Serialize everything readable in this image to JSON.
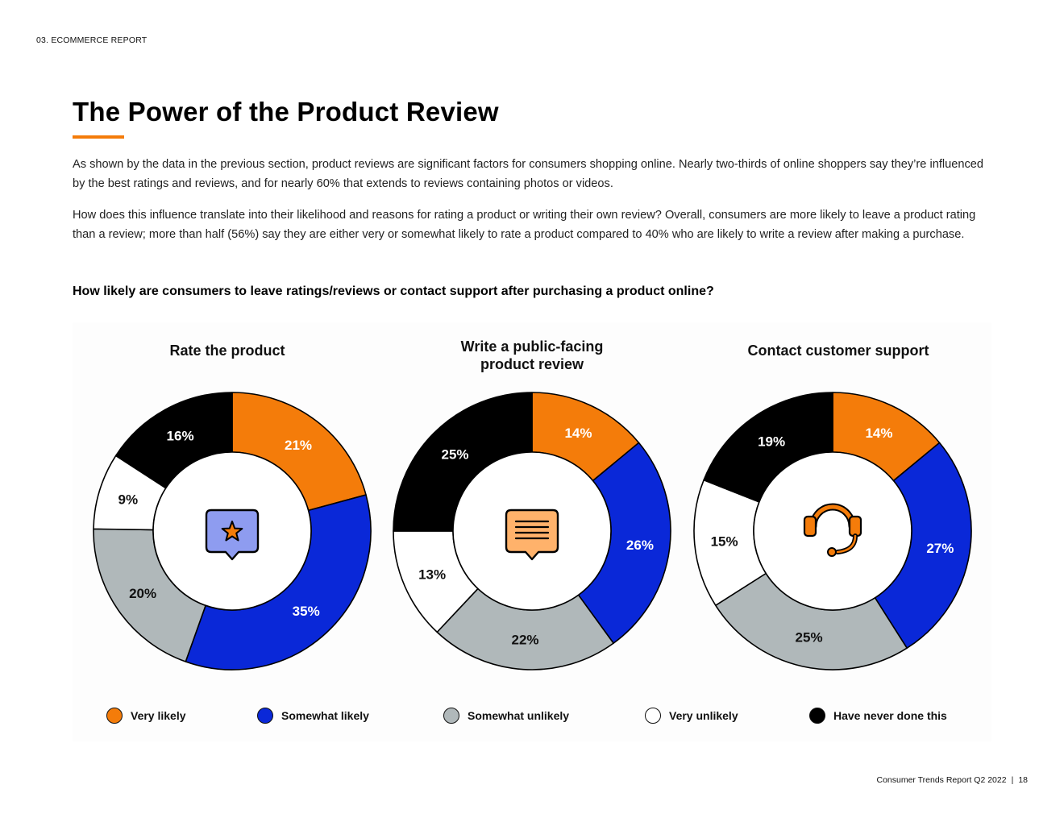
{
  "header": {
    "section_label": "03. ECOMMERCE REPORT"
  },
  "title": "The Power of the Product Review",
  "paragraphs": [
    "As shown by the data in the previous section, product reviews are significant factors for consumers shopping online. Nearly two-thirds of online shoppers say they’re influenced by the best ratings and reviews, and for nearly 60% that extends to reviews containing photos or videos.",
    "How does this influence translate into their likelihood and reasons for rating a product or writing their own review? Overall, consumers are more likely to leave a product rating than a review; more than half (56%) say they are either very or somewhat likely to rate a product compared to 40% who are likely to write a review after making a purchase."
  ],
  "question": "How likely are consumers to leave ratings/reviews or contact support after purchasing a product online?",
  "colors": {
    "very_likely": "#F47C0A",
    "somewhat_likely": "#0A28D8",
    "somewhat_unlikely": "#B0B8BA",
    "very_unlikely": "#FFFFFF",
    "have_never": "#000000",
    "accent": "#F47C0A"
  },
  "chart_data": [
    {
      "type": "pie",
      "variant": "donut",
      "title": "Rate the product",
      "icon": "star-speech-bubble-icon",
      "categories": [
        "Very likely",
        "Somewhat likely",
        "Somewhat unlikely",
        "Very unlikely",
        "Have never done this"
      ],
      "values": [
        21,
        35,
        20,
        9,
        16
      ],
      "labels": [
        "21%",
        "35%",
        "20%",
        "9%",
        "16%"
      ]
    },
    {
      "type": "pie",
      "variant": "donut",
      "title": "Write a public-facing product review",
      "icon": "text-speech-bubble-icon",
      "categories": [
        "Very likely",
        "Somewhat likely",
        "Somewhat unlikely",
        "Very unlikely",
        "Have never done this"
      ],
      "values": [
        14,
        26,
        22,
        13,
        25
      ],
      "labels": [
        "14%",
        "26%",
        "22%",
        "13%",
        "25%"
      ]
    },
    {
      "type": "pie",
      "variant": "donut",
      "title": "Contact customer support",
      "icon": "headset-icon",
      "categories": [
        "Very likely",
        "Somewhat likely",
        "Somewhat unlikely",
        "Very unlikely",
        "Have never done this"
      ],
      "values": [
        14,
        27,
        25,
        15,
        19
      ],
      "labels": [
        "14%",
        "27%",
        "25%",
        "15%",
        "19%"
      ]
    }
  ],
  "legend": [
    {
      "label": "Very likely",
      "color": "#F47C0A"
    },
    {
      "label": "Somewhat likely",
      "color": "#0A28D8"
    },
    {
      "label": "Somewhat unlikely",
      "color": "#B0B8BA"
    },
    {
      "label": "Very unlikely",
      "color": "#FFFFFF"
    },
    {
      "label": "Have never done this",
      "color": "#000000"
    }
  ],
  "footer": {
    "report": "Consumer Trends Report Q2 2022",
    "separator": "|",
    "page": "18"
  }
}
